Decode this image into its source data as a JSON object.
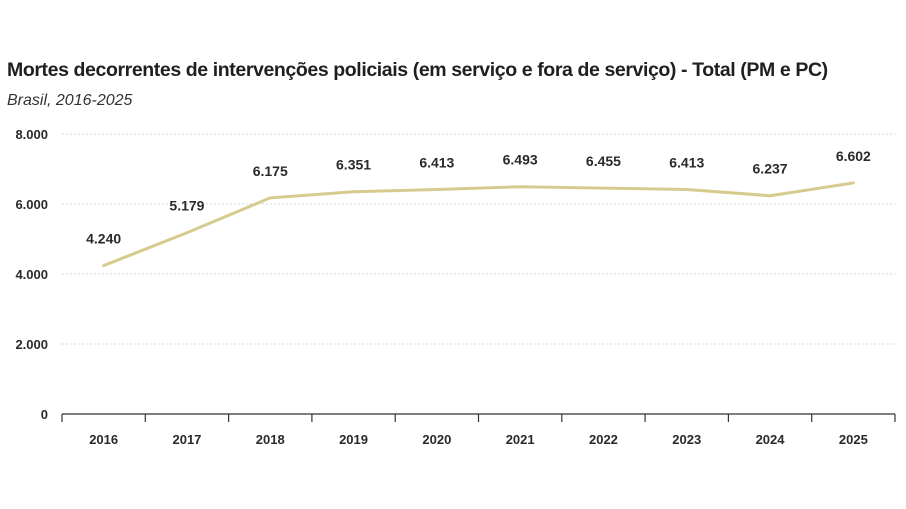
{
  "chart_data": {
    "type": "line",
    "title": "Mortes decorrentes de intervenções policiais (em serviço e fora de serviço) - Total (PM e PC)",
    "subtitle": "Brasil, 2016-2025",
    "xlabel": "",
    "ylabel": "",
    "categories": [
      "2016",
      "2017",
      "2018",
      "2019",
      "2020",
      "2021",
      "2022",
      "2023",
      "2024",
      "2025"
    ],
    "values": [
      4240,
      5179,
      6175,
      6351,
      6413,
      6493,
      6455,
      6413,
      6237,
      6602
    ],
    "data_labels": [
      "4.240",
      "5.179",
      "6.175",
      "6.351",
      "6.413",
      "6.493",
      "6.455",
      "6.413",
      "6.237",
      "6.602"
    ],
    "ylim": [
      0,
      8000
    ],
    "yticks": [
      0,
      2000,
      4000,
      6000,
      8000
    ],
    "ytick_labels": [
      "0",
      "2.000",
      "4.000",
      "6.000",
      "8.000"
    ],
    "grid": "horizontal dotted",
    "line_color": "#d6cb8e",
    "grid_color": "#c8c8c8",
    "axis_color": "#333333"
  }
}
